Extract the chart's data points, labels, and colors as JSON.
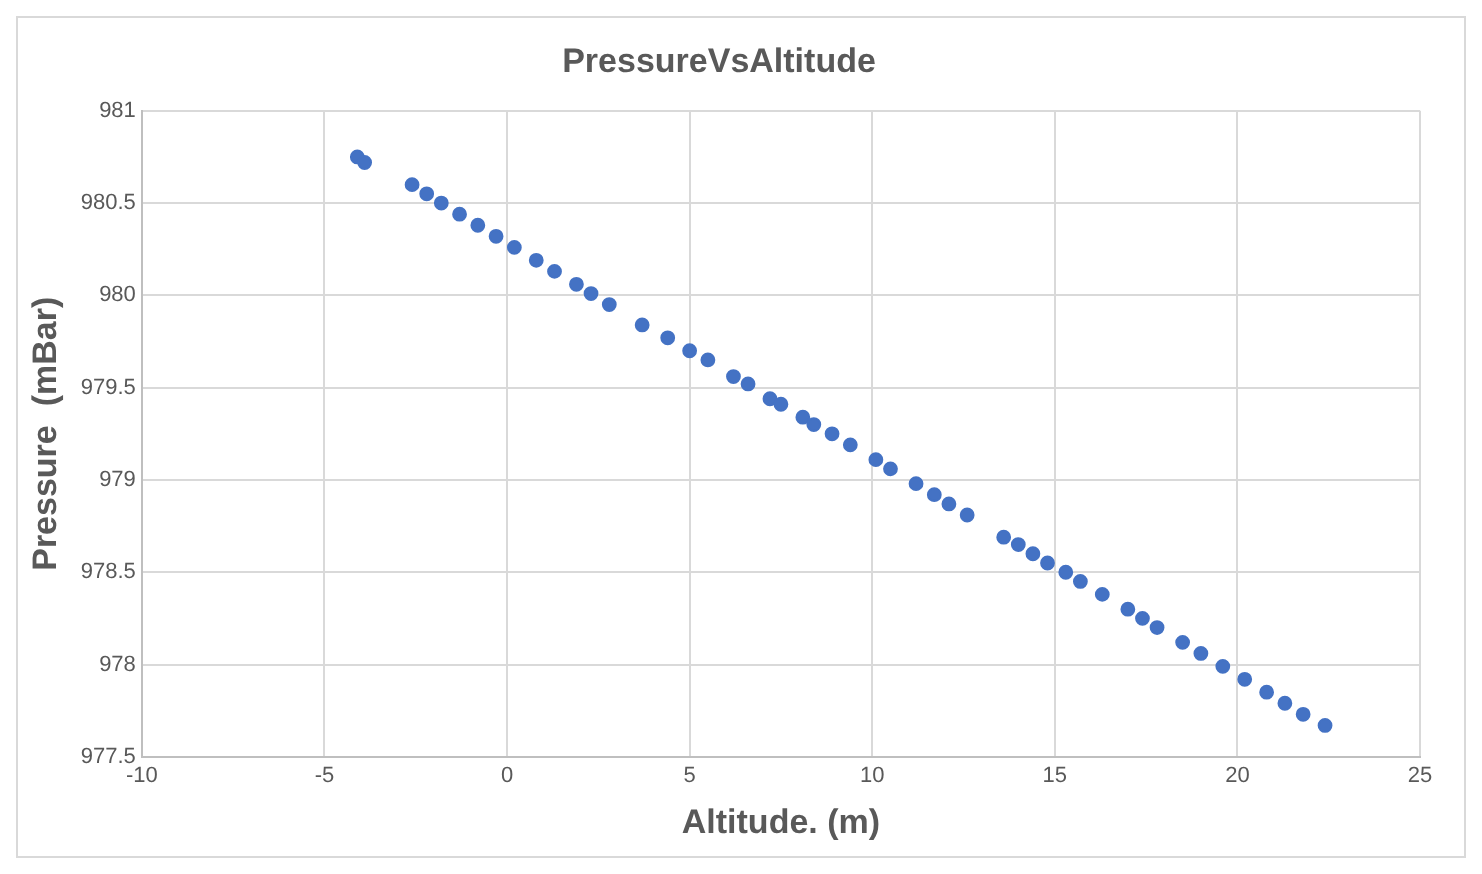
{
  "chart_data": {
    "type": "scatter",
    "title": "PressureVsAltitude",
    "xlabel": "Altitude. (m)",
    "ylabel": "Pressure  (mBar)",
    "x": [
      -4.1,
      -3.9,
      -2.6,
      -2.2,
      -1.8,
      -1.3,
      -0.8,
      -0.3,
      0.2,
      0.8,
      1.3,
      1.9,
      2.3,
      2.8,
      3.7,
      4.4,
      5,
      5.5,
      6.2,
      6.6,
      7.2,
      7.5,
      8.1,
      8.4,
      8.9,
      9.4,
      10.1,
      10.5,
      11.2,
      11.7,
      12.1,
      12.6,
      13.6,
      14,
      14.4,
      14.8,
      15.3,
      15.7,
      16.3,
      17,
      17.4,
      17.8,
      18.5,
      19,
      19.6,
      20.2,
      20.8,
      21.3,
      21.8,
      22.4
    ],
    "values": [
      980.75,
      980.72,
      980.6,
      980.55,
      980.5,
      980.44,
      980.38,
      980.32,
      980.26,
      980.19,
      980.13,
      980.06,
      980.01,
      979.95,
      979.84,
      979.77,
      979.7,
      979.65,
      979.56,
      979.52,
      979.44,
      979.41,
      979.34,
      979.3,
      979.25,
      979.19,
      979.11,
      979.06,
      978.98,
      978.92,
      978.87,
      978.81,
      978.69,
      978.65,
      978.6,
      978.55,
      978.5,
      978.45,
      978.38,
      978.3,
      978.25,
      978.2,
      978.12,
      978.06,
      977.99,
      977.92,
      977.85,
      977.79,
      977.73,
      977.67
    ],
    "color": "#4472c4",
    "marker": "circle",
    "grid": true,
    "xlim": [
      -10,
      25
    ],
    "xticks": [
      -10,
      -5,
      0,
      5,
      10,
      15,
      20,
      25
    ],
    "ylim": [
      977.5,
      981
    ],
    "yticks": [
      977.5,
      978,
      978.5,
      979,
      979.5,
      980,
      980.5,
      981
    ]
  }
}
